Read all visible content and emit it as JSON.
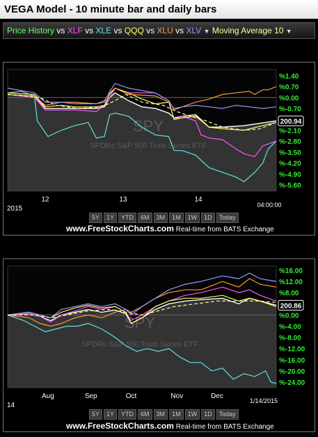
{
  "title": "VEGA Model - 10 minute bar and daily bars",
  "legend": [
    {
      "label": "Price History",
      "color": "#66ff66"
    },
    {
      "label": "vs",
      "color": "#ffffff"
    },
    {
      "label": "XLF",
      "color": "#ff55ff"
    },
    {
      "label": "vs",
      "color": "#ffffff"
    },
    {
      "label": "XLE",
      "color": "#66e0e0"
    },
    {
      "label": "vs",
      "color": "#ffffff"
    },
    {
      "label": "QQQ",
      "color": "#ffff66"
    },
    {
      "label": "vs",
      "color": "#ffffff"
    },
    {
      "label": "XLU",
      "color": "#ff9933"
    },
    {
      "label": "vs",
      "color": "#ffffff"
    },
    {
      "label": "XLV",
      "color": "#9999ff"
    },
    {
      "label": "Moving Average 10",
      "color": "#ffff99"
    }
  ],
  "colors": {
    "spy": "#ffffff",
    "xlf": "#ff55ff",
    "xle": "#66e0e0",
    "qqq": "#ffff66",
    "xlu": "#ff9933",
    "xlv": "#9999ff",
    "ma": "#ffff99",
    "axis": "#33ee33",
    "price_box": "#ffffff"
  },
  "watermark": {
    "symbol": "SPY",
    "name": "SPDRs S&P 500 Trust Series ETF"
  },
  "buttons": [
    "5Y",
    "1Y",
    "YTD",
    "6M",
    "3M",
    "1M",
    "1W",
    "1D",
    "Today"
  ],
  "credit": {
    "site": "www.FreeStockCharts.com",
    "note": "Real-time from BATS Exchange"
  },
  "chart_data": [
    {
      "type": "line",
      "title": "10 minute bars",
      "x_labels": [
        "12",
        "13",
        "14"
      ],
      "corner_label": "2015",
      "time_label": "04:00:00",
      "y_ticks": [
        "%1.40",
        "%0.70",
        "%0.00",
        "%-0.70",
        "%-1.40",
        "%-2.10",
        "%-2.80",
        "%-3.50",
        "%-4.20",
        "%-4.90",
        "%-5.60"
      ],
      "ylim": [
        -6.0,
        1.8
      ],
      "last_price": "200.94",
      "x_range": [
        0,
        100
      ],
      "series": [
        {
          "name": "SPY",
          "key": "spy",
          "x": [
            0,
            10,
            14,
            20,
            24,
            33,
            36,
            38,
            40,
            45,
            50,
            55,
            60,
            62,
            65,
            70,
            75,
            80,
            88,
            100
          ],
          "values": [
            0.2,
            0.1,
            -0.7,
            -0.7,
            -0.7,
            -0.7,
            -0.6,
            0.0,
            0.3,
            -0.2,
            -0.6,
            -0.7,
            -1.0,
            -1.3,
            -1.2,
            -1.1,
            -1.9,
            -1.9,
            -1.8,
            -1.5
          ]
        },
        {
          "name": "XLF",
          "key": "xlf",
          "x": [
            0,
            10,
            14,
            20,
            25,
            33,
            36,
            38,
            40,
            45,
            55,
            60,
            62,
            65,
            70,
            72,
            75,
            80,
            85,
            88,
            92,
            95,
            100
          ],
          "values": [
            0.2,
            0.0,
            -0.8,
            -0.8,
            -0.8,
            -0.9,
            -0.5,
            0.0,
            0.6,
            0.3,
            0.3,
            -0.2,
            -1.4,
            -1.2,
            -1.5,
            -2.4,
            -2.6,
            -2.7,
            -3.3,
            -3.6,
            -3.8,
            -3.1,
            -2.8
          ]
        },
        {
          "name": "XLE",
          "key": "xle",
          "x": [
            0,
            5,
            10,
            11,
            15,
            20,
            25,
            30,
            33,
            36,
            38,
            40,
            45,
            50,
            55,
            60,
            62,
            65,
            70,
            75,
            80,
            85,
            88,
            92,
            95,
            97,
            100
          ],
          "values": [
            0.3,
            0.4,
            0.1,
            -1.5,
            -2.5,
            -2.1,
            -1.8,
            -1.6,
            -2.6,
            -2.5,
            -1.1,
            -1.0,
            -1.2,
            -1.9,
            -2.4,
            -2.5,
            -3.4,
            -3.4,
            -3.7,
            -4.5,
            -4.8,
            -5.1,
            -5.4,
            -4.8,
            -4.2,
            -3.3,
            -2.8
          ]
        },
        {
          "name": "QQQ",
          "key": "qqq",
          "x": [
            0,
            10,
            14,
            20,
            25,
            33,
            36,
            38,
            40,
            45,
            50,
            55,
            60,
            62,
            65,
            70,
            75,
            80,
            88,
            95,
            100
          ],
          "values": [
            0.3,
            0.2,
            -0.6,
            -0.5,
            -0.6,
            -0.6,
            -0.5,
            0.2,
            0.6,
            0.3,
            -0.1,
            -0.4,
            -0.3,
            -1.4,
            -1.3,
            -1.2,
            -1.9,
            -2.0,
            -2.1,
            -1.8,
            -1.6
          ]
        },
        {
          "name": "XLU",
          "key": "xlu",
          "x": [
            0,
            10,
            14,
            20,
            25,
            33,
            36,
            38,
            40,
            45,
            55,
            60,
            62,
            65,
            70,
            75,
            80,
            85,
            90,
            92,
            95,
            97,
            100
          ],
          "values": [
            0.2,
            0.1,
            -0.5,
            -0.3,
            -0.3,
            -0.4,
            -0.2,
            0.3,
            0.6,
            0.2,
            0.1,
            -0.3,
            -0.7,
            -0.6,
            -0.3,
            -0.1,
            0.2,
            0.3,
            0.4,
            0.2,
            0.5,
            0.5,
            0.7
          ]
        },
        {
          "name": "XLV",
          "key": "xlv",
          "x": [
            0,
            10,
            14,
            20,
            25,
            33,
            36,
            38,
            40,
            45,
            55,
            60,
            62,
            65,
            70,
            75,
            80,
            85,
            90,
            95,
            100
          ],
          "values": [
            0.6,
            0.3,
            -0.3,
            -0.3,
            -0.4,
            -0.4,
            -0.3,
            0.4,
            0.9,
            0.6,
            0.3,
            -0.2,
            -0.8,
            -0.6,
            -0.5,
            -0.6,
            -0.7,
            -0.5,
            -0.6,
            -0.7,
            -0.6
          ]
        },
        {
          "name": "Moving Average 10",
          "key": "ma",
          "x": [
            0,
            12,
            18,
            26,
            35,
            40,
            44,
            50,
            58,
            63,
            68,
            74,
            80,
            88,
            94,
            100
          ],
          "values": [
            0.2,
            0.0,
            -0.5,
            -0.7,
            -0.6,
            -0.2,
            0.2,
            -0.3,
            -0.5,
            -0.9,
            -1.2,
            -1.5,
            -1.9,
            -2.1,
            -2.0,
            -1.6
          ]
        }
      ]
    },
    {
      "type": "line",
      "title": "daily bars",
      "x_labels": [
        "Aug",
        "Sep",
        "Oct",
        "Nov",
        "Dec"
      ],
      "corner_label": "14",
      "date_label": "1/14/2015",
      "y_ticks": [
        "%16.00",
        "%12.00",
        "%8.00",
        "%4.00",
        "%0.00",
        "%-4.00",
        "%-8.00",
        "%-12.00",
        "%-16.00",
        "%-20.00",
        "%-24.00"
      ],
      "ylim": [
        -26,
        17.5
      ],
      "last_price": "200.86",
      "x_range": [
        0,
        100
      ],
      "series": [
        {
          "name": "SPY",
          "key": "spy",
          "x": [
            0,
            8,
            12,
            16,
            20,
            25,
            30,
            35,
            40,
            44,
            46,
            50,
            55,
            60,
            66,
            72,
            80,
            86,
            90,
            94,
            100
          ],
          "values": [
            0.0,
            0.5,
            -0.5,
            -2.0,
            0.0,
            1.0,
            2.0,
            1.0,
            1.8,
            0.5,
            -3.0,
            -1.0,
            2.0,
            4.0,
            5.0,
            5.5,
            6.0,
            4.0,
            6.0,
            5.0,
            3.5
          ]
        },
        {
          "name": "XLF",
          "key": "xlf",
          "x": [
            0,
            8,
            12,
            16,
            20,
            25,
            30,
            35,
            40,
            44,
            46,
            50,
            55,
            60,
            66,
            72,
            80,
            86,
            90,
            94,
            100
          ],
          "values": [
            0.0,
            0.5,
            -0.5,
            -2.5,
            0.0,
            1.5,
            3.0,
            2.0,
            3.0,
            1.0,
            -2.0,
            0.0,
            3.0,
            5.0,
            7.0,
            8.0,
            10.0,
            8.0,
            9.0,
            7.0,
            5.0
          ]
        },
        {
          "name": "XLE",
          "key": "xle",
          "x": [
            0,
            6,
            10,
            14,
            18,
            22,
            26,
            30,
            35,
            40,
            44,
            48,
            52,
            56,
            60,
            64,
            68,
            72,
            76,
            80,
            84,
            88,
            92,
            96,
            98,
            100
          ],
          "values": [
            0.0,
            -2.0,
            -4.0,
            -6.0,
            -5.0,
            -4.0,
            -4.0,
            -3.0,
            -5.0,
            -8.0,
            -11.0,
            -13.0,
            -12.0,
            -13.0,
            -12.0,
            -15.0,
            -17.0,
            -17.0,
            -20.0,
            -19.0,
            -23.0,
            -21.0,
            -22.0,
            -20.0,
            -24.0,
            -24.5
          ]
        },
        {
          "name": "QQQ",
          "key": "qqq",
          "x": [
            0,
            8,
            12,
            16,
            20,
            25,
            30,
            35,
            40,
            44,
            46,
            50,
            55,
            60,
            66,
            72,
            80,
            86,
            90,
            94,
            100
          ],
          "values": [
            0.0,
            1.0,
            0.0,
            -1.0,
            1.0,
            2.5,
            3.5,
            2.5,
            3.0,
            1.0,
            -3.0,
            -1.0,
            3.0,
            5.0,
            6.0,
            6.0,
            7.0,
            5.0,
            6.0,
            5.0,
            3.0
          ]
        },
        {
          "name": "XLU",
          "key": "xlu",
          "x": [
            0,
            8,
            12,
            16,
            20,
            25,
            30,
            35,
            40,
            44,
            46,
            50,
            55,
            60,
            66,
            72,
            80,
            86,
            90,
            94,
            100
          ],
          "values": [
            0.0,
            -1.0,
            -3.0,
            -4.0,
            -3.0,
            -1.0,
            0.0,
            -1.0,
            1.0,
            2.0,
            1.0,
            3.0,
            6.0,
            8.0,
            9.0,
            9.0,
            12.0,
            10.0,
            13.0,
            11.0,
            10.0
          ]
        },
        {
          "name": "XLV",
          "key": "xlv",
          "x": [
            0,
            8,
            12,
            16,
            20,
            25,
            30,
            35,
            40,
            44,
            46,
            50,
            55,
            60,
            66,
            72,
            80,
            86,
            90,
            94,
            100
          ],
          "values": [
            0.0,
            1.0,
            0.0,
            -1.0,
            2.0,
            3.0,
            4.0,
            3.0,
            4.0,
            2.0,
            0.0,
            3.0,
            6.0,
            9.0,
            11.0,
            12.0,
            14.0,
            13.0,
            15.0,
            13.0,
            12.0
          ]
        },
        {
          "name": "Moving Average 10",
          "key": "ma",
          "x": [
            0,
            10,
            16,
            22,
            30,
            38,
            44,
            50,
            56,
            62,
            70,
            78,
            86,
            94,
            100
          ],
          "values": [
            0.0,
            0.0,
            -1.0,
            0.0,
            1.5,
            2.0,
            1.0,
            0.0,
            1.5,
            3.0,
            4.0,
            5.0,
            5.0,
            5.0,
            4.5
          ]
        }
      ]
    }
  ]
}
